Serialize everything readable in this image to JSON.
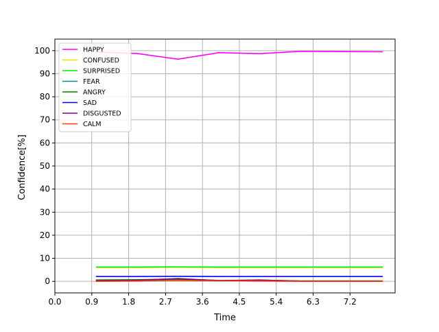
{
  "chart_data": {
    "type": "line",
    "title": "",
    "xlabel": "Time",
    "ylabel": "Confidence[%]",
    "xlim": [
      0.0,
      8.3
    ],
    "ylim": [
      -5,
      105
    ],
    "x_ticks": [
      "0.0",
      "0.9",
      "1.8",
      "2.7",
      "3.6",
      "4.5",
      "5.4",
      "6.3",
      "7.2"
    ],
    "y_ticks": [
      "0",
      "10",
      "20",
      "30",
      "40",
      "50",
      "60",
      "70",
      "80",
      "90",
      "100"
    ],
    "grid": true,
    "legend_position": "top-left",
    "x": [
      1,
      2,
      3,
      4,
      5,
      6,
      7,
      8
    ],
    "series": [
      {
        "name": "HAPPY",
        "color": "#ff00ff",
        "values": [
          99.4,
          98.8,
          96.3,
          99.1,
          98.7,
          99.7,
          99.6,
          99.5
        ]
      },
      {
        "name": "CONFUSED",
        "color": "#ffd700",
        "values": [
          6.0,
          6.0,
          6.1,
          6.0,
          6.0,
          6.0,
          6.0,
          6.0
        ]
      },
      {
        "name": "SURPRISED",
        "color": "#00ee00",
        "values": [
          6.2,
          6.2,
          6.3,
          6.2,
          6.2,
          6.2,
          6.2,
          6.2
        ]
      },
      {
        "name": "FEAR",
        "color": "#008b8b",
        "values": [
          0.2,
          0.3,
          0.6,
          0.2,
          0.3,
          0.1,
          0.1,
          0.1
        ]
      },
      {
        "name": "ANGRY",
        "color": "#008000",
        "values": [
          0.6,
          0.7,
          1.0,
          0.4,
          0.5,
          0.2,
          0.2,
          0.2
        ]
      },
      {
        "name": "SAD",
        "color": "#0000ff",
        "values": [
          2.1,
          2.1,
          2.2,
          2.1,
          2.1,
          2.1,
          2.1,
          2.1
        ]
      },
      {
        "name": "DISGUSTED",
        "color": "#800080",
        "values": [
          0.3,
          0.5,
          1.2,
          0.3,
          0.6,
          0.1,
          0.1,
          0.1
        ]
      },
      {
        "name": "CALM",
        "color": "#ff4500",
        "values": [
          0.0,
          0.1,
          0.4,
          0.2,
          0.1,
          0.0,
          0.0,
          0.0
        ]
      }
    ]
  }
}
